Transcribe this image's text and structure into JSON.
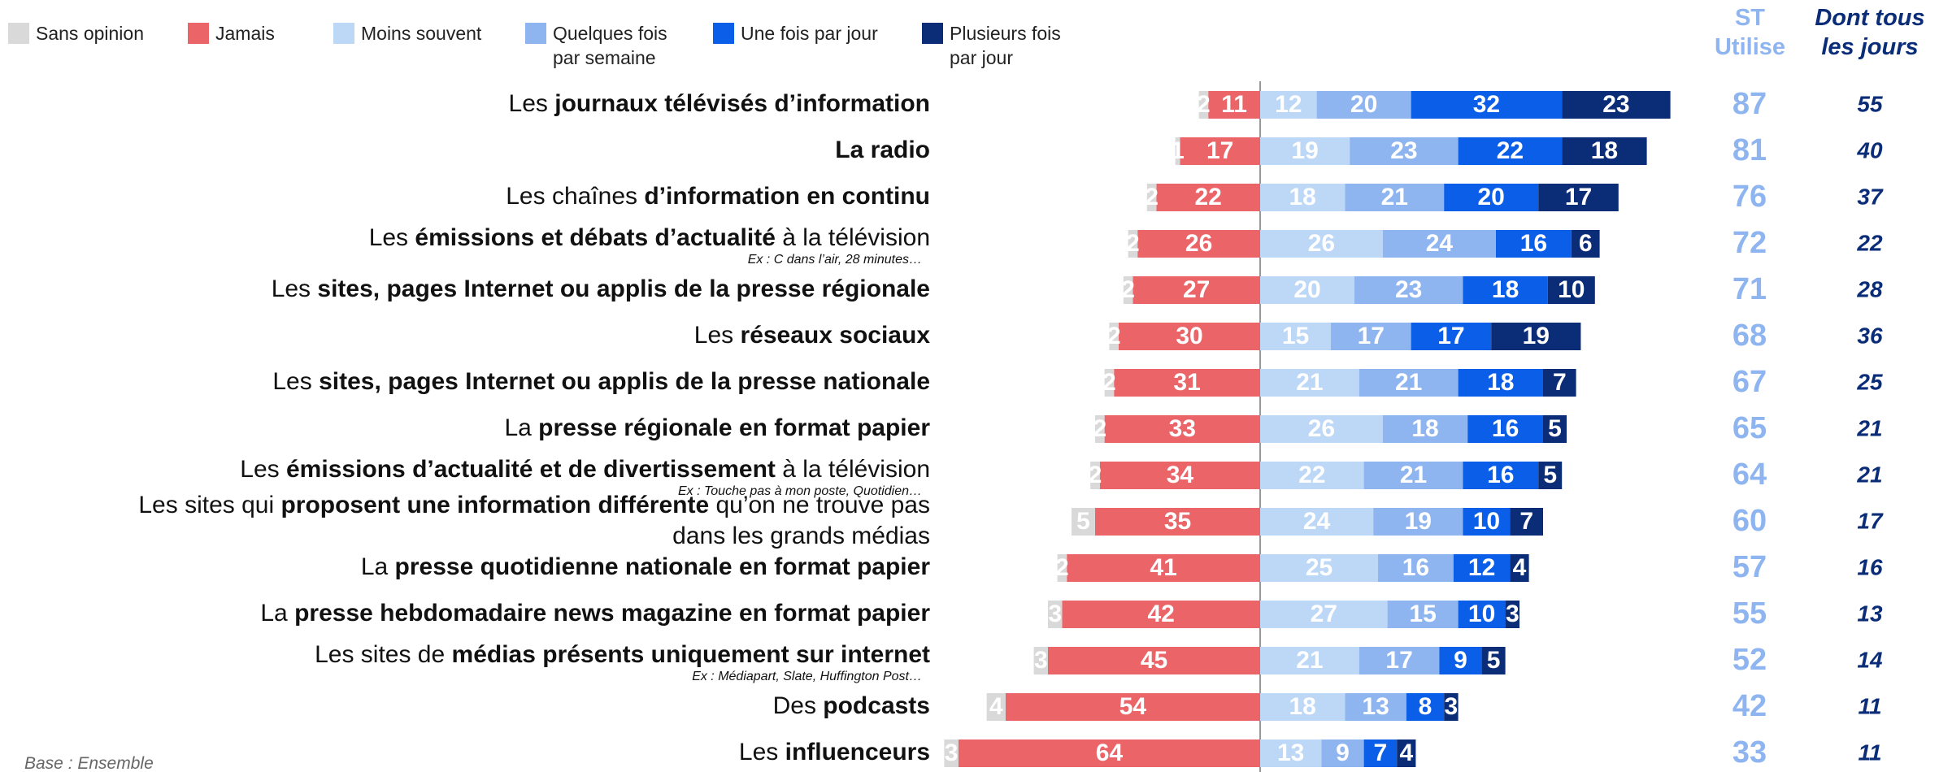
{
  "chart_data": {
    "type": "diverging_stacked_bar",
    "categories": [
      {
        "lines": [
          [
            {
              "text": "Les ",
              "bold": false
            },
            {
              "text": "journaux télévisés d’information",
              "bold": true
            }
          ]
        ]
      },
      {
        "lines": [
          [
            {
              "text": "La radio",
              "bold": true
            }
          ]
        ]
      },
      {
        "lines": [
          [
            {
              "text": "Les chaînes ",
              "bold": false
            },
            {
              "text": "d’information en continu",
              "bold": true
            }
          ]
        ]
      },
      {
        "lines": [
          [
            {
              "text": "Les ",
              "bold": false
            },
            {
              "text": "émissions et débats d’actualité",
              "bold": true
            },
            {
              "text": " à la télévision",
              "bold": false
            }
          ]
        ],
        "note": "Ex : C dans l’air, 28 minutes…"
      },
      {
        "lines": [
          [
            {
              "text": "Les ",
              "bold": false
            },
            {
              "text": "sites, pages Internet ou applis de la presse régionale",
              "bold": true
            }
          ]
        ]
      },
      {
        "lines": [
          [
            {
              "text": "Les ",
              "bold": false
            },
            {
              "text": "réseaux sociaux",
              "bold": true
            }
          ]
        ]
      },
      {
        "lines": [
          [
            {
              "text": "Les ",
              "bold": false
            },
            {
              "text": "sites, pages Internet ou applis de la presse nationale",
              "bold": true
            }
          ]
        ]
      },
      {
        "lines": [
          [
            {
              "text": "La ",
              "bold": false
            },
            {
              "text": "presse régionale en format papier",
              "bold": true
            }
          ]
        ]
      },
      {
        "lines": [
          [
            {
              "text": "Les ",
              "bold": false
            },
            {
              "text": "émissions d’actualité et de divertissement",
              "bold": true
            },
            {
              "text": " à la télévision",
              "bold": false
            }
          ]
        ],
        "note": "Ex : Touche pas à mon poste, Quotidien…"
      },
      {
        "lines": [
          [
            {
              "text": "Les sites qui ",
              "bold": false
            },
            {
              "text": "proposent une information différente",
              "bold": true
            },
            {
              "text": " qu’on ne trouve pas",
              "bold": false
            }
          ],
          [
            {
              "text": "dans les grands médias",
              "bold": false
            }
          ]
        ]
      },
      {
        "lines": [
          [
            {
              "text": "La ",
              "bold": false
            },
            {
              "text": "presse quotidienne nationale en format papier",
              "bold": true
            }
          ]
        ]
      },
      {
        "lines": [
          [
            {
              "text": "La ",
              "bold": false
            },
            {
              "text": "presse hebdomadaire news magazine en format papier",
              "bold": true
            }
          ]
        ]
      },
      {
        "lines": [
          [
            {
              "text": "Les sites de ",
              "bold": false
            },
            {
              "text": "médias présents uniquement sur internet",
              "bold": true
            }
          ]
        ],
        "note": "Ex : Médiapart, Slate, Huffington Post…"
      },
      {
        "lines": [
          [
            {
              "text": "Des ",
              "bold": false
            },
            {
              "text": "podcasts",
              "bold": true
            }
          ]
        ]
      },
      {
        "lines": [
          [
            {
              "text": "Les ",
              "bold": false
            },
            {
              "text": "influenceurs",
              "bold": true
            }
          ]
        ]
      }
    ],
    "series": [
      {
        "name": "Sans opinion",
        "color": "#d9d9d9",
        "side": "left",
        "values": [
          2,
          1,
          2,
          2,
          2,
          2,
          2,
          2,
          2,
          5,
          2,
          3,
          3,
          4,
          3
        ]
      },
      {
        "name": "Jamais",
        "color": "#ea6468",
        "side": "left",
        "values": [
          11,
          17,
          22,
          26,
          27,
          30,
          31,
          33,
          34,
          35,
          41,
          42,
          45,
          54,
          64
        ]
      },
      {
        "name": "Moins souvent",
        "color": "#bdd7f7",
        "side": "right",
        "values": [
          12,
          19,
          18,
          26,
          20,
          15,
          21,
          26,
          22,
          24,
          25,
          27,
          21,
          18,
          13
        ]
      },
      {
        "name": "Quelques fois par semaine",
        "color": "#8fb5f0",
        "side": "right",
        "values": [
          20,
          23,
          21,
          24,
          23,
          17,
          21,
          18,
          21,
          19,
          16,
          15,
          17,
          13,
          9
        ]
      },
      {
        "name": "Une fois par jour",
        "color": "#0b5ee8",
        "side": "right",
        "values": [
          32,
          22,
          20,
          16,
          18,
          17,
          18,
          16,
          16,
          10,
          12,
          10,
          9,
          8,
          7
        ]
      },
      {
        "name": "Plusieurs fois par jour",
        "color": "#0b2d78",
        "side": "right",
        "values": [
          23,
          18,
          17,
          6,
          10,
          19,
          7,
          5,
          5,
          7,
          4,
          3,
          5,
          3,
          4
        ]
      }
    ],
    "totals": {
      "name": "ST Utilise",
      "color": "#8fb5f0",
      "values": [
        87,
        81,
        76,
        72,
        71,
        68,
        67,
        65,
        64,
        60,
        57,
        55,
        52,
        42,
        33
      ]
    },
    "daily": {
      "name": "Dont tous les jours",
      "color": "#0b2d78",
      "values": [
        55,
        40,
        37,
        22,
        28,
        36,
        25,
        21,
        21,
        17,
        16,
        13,
        14,
        11,
        11
      ]
    },
    "footnote": "Base : Ensemble"
  }
}
